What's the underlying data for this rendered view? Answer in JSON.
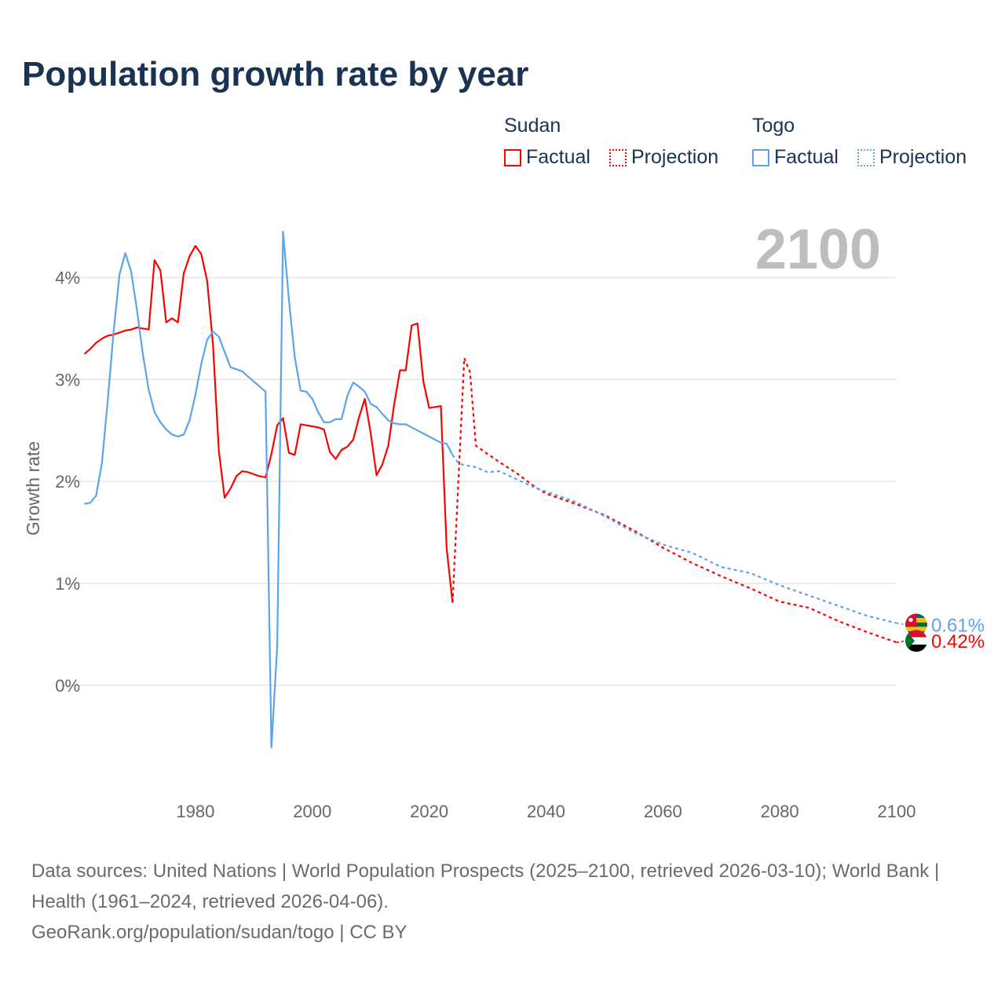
{
  "title": "Population growth rate by year",
  "legend": {
    "groups": [
      {
        "name": "Sudan",
        "color": "#ff0000",
        "factual": "Factual",
        "projection": "Projection"
      },
      {
        "name": "Togo",
        "color": "#5ba4ec",
        "factual": "Factual",
        "projection": "Projection"
      }
    ]
  },
  "year_label": "2100",
  "source": {
    "line1": "Data sources: United Nations | World Population Prospects (2025–2100, retrieved 2026-03-10); World Bank | Health (1961–2024, retrieved 2026-04-06).",
    "line2": "GeoRank.org/population/sudan/togo | CC BY"
  },
  "chart_data": {
    "type": "line",
    "title": "Population growth rate by year",
    "xlabel": "",
    "ylabel": "Growth rate",
    "xlim": [
      1961,
      2100
    ],
    "ylim": [
      -0.98,
      4.72
    ],
    "xticks": [
      1980,
      2000,
      2020,
      2040,
      2060,
      2080,
      2100
    ],
    "yticks": [
      {
        "v": 0,
        "label": "0%"
      },
      {
        "v": 1,
        "label": "1%"
      },
      {
        "v": 2,
        "label": "2%"
      },
      {
        "v": 3,
        "label": "3%"
      },
      {
        "v": 4,
        "label": "4%"
      }
    ],
    "grid": true,
    "legend_position": "top-right",
    "series": [
      {
        "name": "Sudan Factual",
        "color": "#ff0000",
        "dashed": false,
        "x": [
          1961,
          1962,
          1963,
          1964,
          1965,
          1966,
          1967,
          1968,
          1969,
          1970,
          1971,
          1972,
          1973,
          1974,
          1975,
          1976,
          1977,
          1978,
          1979,
          1980,
          1981,
          1982,
          1983,
          1984,
          1985,
          1986,
          1987,
          1988,
          1989,
          1990,
          1991,
          1992,
          1993,
          1994,
          1995,
          1996,
          1997,
          1998,
          1999,
          2000,
          2001,
          2002,
          2003,
          2004,
          2005,
          2006,
          2007,
          2008,
          2009,
          2010,
          2011,
          2012,
          2013,
          2014,
          2015,
          2016,
          2017,
          2018,
          2019,
          2020,
          2021,
          2022,
          2023,
          2024
        ],
        "y": [
          3.25,
          3.3,
          3.36,
          3.4,
          3.43,
          3.44,
          3.46,
          3.48,
          3.49,
          3.51,
          3.5,
          3.49,
          4.17,
          4.07,
          3.56,
          3.6,
          3.56,
          4.04,
          4.21,
          4.31,
          4.23,
          3.97,
          3.35,
          2.3,
          1.84,
          1.93,
          2.05,
          2.1,
          2.09,
          2.07,
          2.05,
          2.04,
          2.27,
          2.55,
          2.62,
          2.28,
          2.26,
          2.56,
          2.55,
          2.54,
          2.53,
          2.51,
          2.29,
          2.22,
          2.31,
          2.34,
          2.41,
          2.63,
          2.81,
          2.47,
          2.06,
          2.17,
          2.35,
          2.75,
          3.09,
          3.09,
          3.53,
          3.55,
          2.98,
          2.72,
          2.73,
          2.74,
          1.34,
          0.81
        ]
      },
      {
        "name": "Sudan Projection",
        "color": "#ff0000",
        "dashed": true,
        "x": [
          2024,
          2026,
          2027,
          2028,
          2030,
          2032,
          2035,
          2038,
          2040,
          2045,
          2050,
          2055,
          2060,
          2065,
          2070,
          2075,
          2080,
          2085,
          2090,
          2095,
          2100
        ],
        "y": [
          0.81,
          3.21,
          3.07,
          2.35,
          2.27,
          2.19,
          2.08,
          1.95,
          1.88,
          1.78,
          1.67,
          1.52,
          1.35,
          1.2,
          1.07,
          0.95,
          0.82,
          0.76,
          0.63,
          0.52,
          0.42
        ]
      },
      {
        "name": "Togo Factual",
        "color": "#5ba4ec",
        "dashed": false,
        "x": [
          1961,
          1962,
          1963,
          1964,
          1965,
          1966,
          1967,
          1968,
          1969,
          1970,
          1971,
          1972,
          1973,
          1974,
          1975,
          1976,
          1977,
          1978,
          1979,
          1980,
          1981,
          1982,
          1983,
          1984,
          1985,
          1986,
          1987,
          1988,
          1989,
          1990,
          1991,
          1992,
          1993,
          1994,
          1995,
          1996,
          1997,
          1998,
          1999,
          2000,
          2001,
          2002,
          2003,
          2004,
          2005,
          2006,
          2007,
          2008,
          2009,
          2010,
          2011,
          2012,
          2013,
          2014,
          2015,
          2016,
          2017,
          2018,
          2019,
          2020,
          2021,
          2022,
          2023,
          2024
        ],
        "y": [
          1.78,
          1.79,
          1.86,
          2.18,
          2.8,
          3.47,
          4.03,
          4.24,
          4.06,
          3.68,
          3.25,
          2.9,
          2.68,
          2.58,
          2.51,
          2.46,
          2.44,
          2.46,
          2.6,
          2.85,
          3.15,
          3.39,
          3.47,
          3.42,
          3.27,
          3.12,
          3.1,
          3.08,
          3.03,
          2.98,
          2.93,
          2.88,
          -0.61,
          0.39,
          4.45,
          3.78,
          3.22,
          2.89,
          2.88,
          2.81,
          2.68,
          2.58,
          2.58,
          2.61,
          2.61,
          2.84,
          2.97,
          2.93,
          2.88,
          2.76,
          2.73,
          2.66,
          2.6,
          2.57,
          2.56,
          2.56,
          2.53,
          2.5,
          2.47,
          2.44,
          2.41,
          2.38,
          2.37,
          2.26
        ]
      },
      {
        "name": "Togo Projection",
        "color": "#5ba4ec",
        "dashed": true,
        "x": [
          2024,
          2025,
          2026,
          2028,
          2030,
          2032,
          2035,
          2038,
          2040,
          2045,
          2050,
          2055,
          2060,
          2065,
          2070,
          2075,
          2080,
          2085,
          2090,
          2095,
          2100
        ],
        "y": [
          2.26,
          2.18,
          2.16,
          2.14,
          2.09,
          2.1,
          2.02,
          1.94,
          1.9,
          1.8,
          1.66,
          1.5,
          1.38,
          1.3,
          1.16,
          1.1,
          0.98,
          0.88,
          0.78,
          0.68,
          0.61
        ]
      }
    ],
    "end_labels": [
      {
        "country": "Togo",
        "label": "0.61%",
        "value": 0.61,
        "color": "#5ba4ec"
      },
      {
        "country": "Sudan",
        "label": "0.42%",
        "value": 0.42,
        "color": "#ff0000"
      }
    ]
  }
}
